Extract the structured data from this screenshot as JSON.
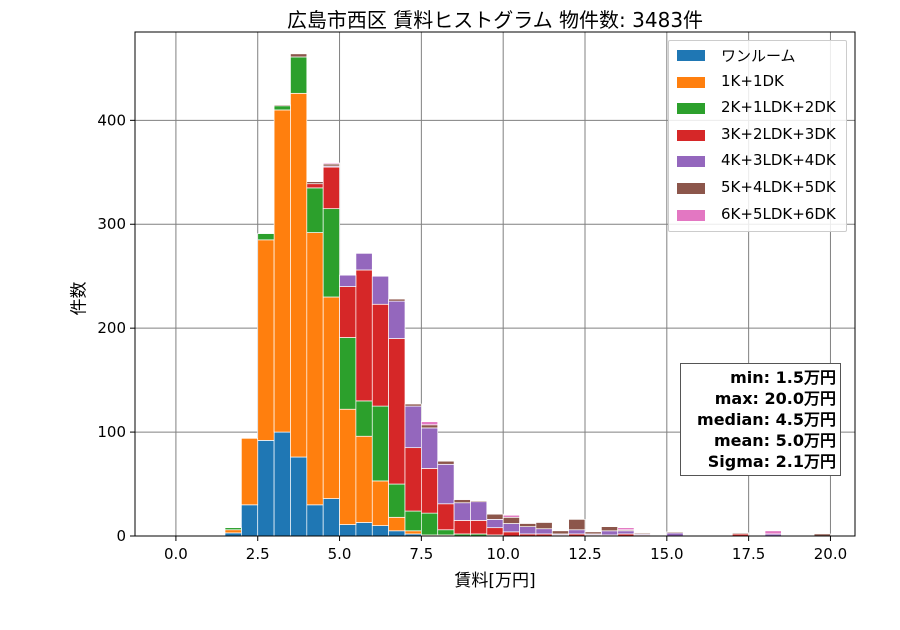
{
  "chart_data": {
    "type": "bar",
    "title": "広島市西区 賃料ヒストグラム 物件数: 3483件",
    "xlabel": "賃料[万円]",
    "ylabel": "件数",
    "xlim": [
      -1.25,
      20.75
    ],
    "ylim": [
      0,
      485
    ],
    "x_ticks": [
      "0.0",
      "2.5",
      "5.0",
      "7.5",
      "10.0",
      "12.5",
      "15.0",
      "17.5",
      "20.0"
    ],
    "x_tick_values": [
      0,
      2.5,
      5,
      7.5,
      10,
      12.5,
      15,
      17.5,
      20
    ],
    "y_ticks": [
      "0",
      "100",
      "200",
      "300",
      "400"
    ],
    "y_tick_values": [
      0,
      100,
      200,
      300,
      400
    ],
    "grid": true,
    "stacked": true,
    "legend_position": "top-right",
    "bin_width": 0.5,
    "bin_starts": [
      1.5,
      2.0,
      2.5,
      3.0,
      3.5,
      4.0,
      4.5,
      5.0,
      5.5,
      6.0,
      6.5,
      7.0,
      7.5,
      8.0,
      8.5,
      9.0,
      9.5,
      10.0,
      10.5,
      11.0,
      11.5,
      12.0,
      12.5,
      13.0,
      13.5,
      14.0,
      14.5,
      15.0,
      15.5,
      16.0,
      16.5,
      17.0,
      17.5,
      18.0,
      18.5,
      19.0,
      19.5
    ],
    "series": [
      {
        "name": "ワンルーム",
        "color": "#1f77b4",
        "values": [
          3,
          30,
          92,
          100,
          76,
          30,
          36,
          11,
          13,
          10,
          5,
          2,
          0,
          0,
          0,
          0,
          0,
          0,
          0,
          0,
          0,
          0,
          0,
          0,
          0,
          0,
          0,
          0,
          0,
          0,
          0,
          0,
          0,
          0,
          0,
          0,
          0
        ]
      },
      {
        "name": "1K+1DK",
        "color": "#ff7f0e",
        "values": [
          3,
          64,
          193,
          310,
          350,
          262,
          194,
          111,
          83,
          43,
          13,
          3,
          1,
          1,
          0,
          0,
          0,
          0,
          0,
          0,
          0,
          0,
          0,
          0,
          0,
          0,
          0,
          0,
          0,
          0,
          0,
          0,
          0,
          0,
          0,
          0,
          0
        ]
      },
      {
        "name": "2K+1LDK+2DK",
        "color": "#2ca02c",
        "values": [
          2,
          0,
          6,
          4,
          35,
          43,
          85,
          69,
          34,
          72,
          32,
          19,
          21,
          5,
          2,
          2,
          1,
          0,
          0,
          0,
          0,
          0,
          0,
          0,
          0,
          0,
          0,
          0,
          0,
          0,
          0,
          0,
          0,
          0,
          0,
          0,
          0
        ]
      },
      {
        "name": "3K+2LDK+3DK",
        "color": "#d62728",
        "values": [
          0,
          0,
          0,
          0,
          0,
          4,
          40,
          49,
          126,
          98,
          140,
          61,
          43,
          25,
          13,
          13,
          7,
          4,
          2,
          2,
          1,
          2,
          1,
          1,
          2,
          1,
          0,
          0,
          0,
          0,
          0,
          2,
          0,
          0,
          0,
          0,
          0
        ]
      },
      {
        "name": "4K+3LDK+4DK",
        "color": "#9467bd",
        "values": [
          0,
          0,
          0,
          0,
          0,
          0,
          1,
          11,
          16,
          27,
          36,
          40,
          39,
          38,
          17,
          18,
          8,
          8,
          7,
          5,
          1,
          4,
          1,
          4,
          3,
          1,
          0,
          3,
          0,
          0,
          0,
          0,
          0,
          2,
          0,
          0,
          0
        ]
      },
      {
        "name": "5K+4LDK+5DK",
        "color": "#8c564b",
        "values": [
          0,
          0,
          0,
          1,
          3,
          2,
          2,
          0,
          0,
          0,
          2,
          2,
          3,
          3,
          3,
          1,
          5,
          6,
          3,
          6,
          3,
          10,
          2,
          4,
          1,
          1,
          0,
          1,
          0,
          0,
          0,
          1,
          0,
          0,
          0,
          0,
          2
        ]
      },
      {
        "name": "6K+5LDK+6DK",
        "color": "#e377c2",
        "values": [
          0,
          0,
          0,
          0,
          0,
          0,
          1,
          0,
          0,
          0,
          0,
          0,
          3,
          0,
          0,
          0,
          0,
          2,
          0,
          0,
          0,
          0,
          0,
          0,
          2,
          0,
          0,
          0,
          0,
          0,
          0,
          0,
          0,
          3,
          0,
          0,
          0
        ]
      }
    ],
    "stats": {
      "min": "min: 1.5万円",
      "max": "max: 20.0万円",
      "median": "median: 4.5万円",
      "mean": "mean: 5.0万円",
      "sigma": "Sigma: 2.1万円"
    }
  }
}
